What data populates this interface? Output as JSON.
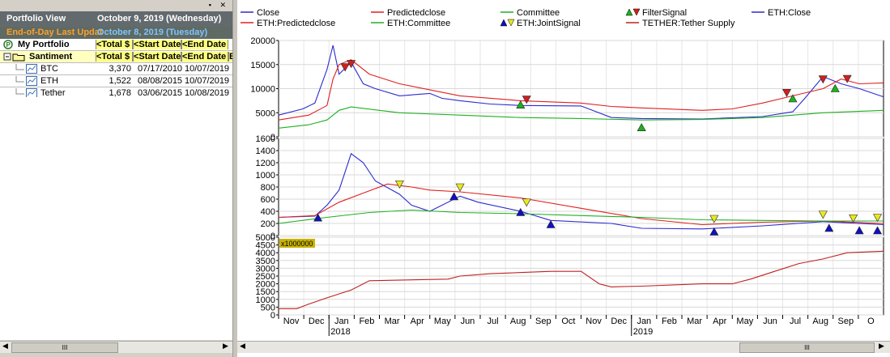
{
  "left_panel": {
    "view_title": "Portfolio View",
    "view_date": "October 9, 2019 (Wednesday)",
    "eod_label": "End-of-Day Last Updat",
    "eod_date": "October 8, 2019 (Tuesday)",
    "portfolio": {
      "name": "My Portfolio",
      "col1": "<Total $",
      "col2": "<Start Date",
      "col3": "<End Date"
    },
    "group": {
      "name": "Santiment",
      "col1": "<Total $",
      "col2": "<Start Date",
      "col3": "<End Date",
      "col4": "E"
    },
    "rows": [
      {
        "name": "BTC",
        "total": "3,370",
        "start": "07/17/2010",
        "end": "10/07/2019"
      },
      {
        "name": "ETH",
        "total": "1,522",
        "start": "08/08/2015",
        "end": "10/07/2019"
      },
      {
        "name": "Tether",
        "total": "1,678",
        "start": "03/06/2015",
        "end": "10/08/2019"
      }
    ],
    "scroll_grip": "III"
  },
  "chart_scroll_grip": "III",
  "legend": [
    {
      "label": "Close",
      "color": "#2b2bd0",
      "icon": "line"
    },
    {
      "label": "Predictedclose",
      "color": "#e02020",
      "icon": "line"
    },
    {
      "label": "Committee",
      "color": "#20b020",
      "icon": "line"
    },
    {
      "label": "FilterSignal",
      "color": "#20b020",
      "icon": "triangles-green-red"
    },
    {
      "label": "ETH:Close",
      "color": "#2b2bd0",
      "icon": "line"
    },
    {
      "label": "ETH:Predictedclose",
      "color": "#e02020",
      "icon": "line"
    },
    {
      "label": "ETH:Committee",
      "color": "#20b020",
      "icon": "line"
    },
    {
      "label": "ETH:JointSignal",
      "color": "#1010c0",
      "icon": "triangles-blue-yellow"
    },
    {
      "label": "TETHER:Tether Supply",
      "color": "#c02020",
      "icon": "line"
    }
  ],
  "chart_data": [
    {
      "type": "line",
      "panel": "top",
      "ylim": [
        0,
        20000
      ],
      "yticks": [
        0,
        5000,
        10000,
        15000,
        20000
      ],
      "series": [
        {
          "name": "Close",
          "color": "#2b2bd0",
          "values": [
            [
              0,
              4500
            ],
            [
              0.04,
              5800
            ],
            [
              0.06,
              7000
            ],
            [
              0.08,
              14000
            ],
            [
              0.09,
              19000
            ],
            [
              0.1,
              13000
            ],
            [
              0.12,
              15500
            ],
            [
              0.14,
              11000
            ],
            [
              0.16,
              10000
            ],
            [
              0.2,
              8500
            ],
            [
              0.25,
              9000
            ],
            [
              0.27,
              8000
            ],
            [
              0.3,
              7500
            ],
            [
              0.35,
              6800
            ],
            [
              0.4,
              6500
            ],
            [
              0.5,
              6400
            ],
            [
              0.55,
              4000
            ],
            [
              0.6,
              3800
            ],
            [
              0.7,
              3700
            ],
            [
              0.8,
              4200
            ],
            [
              0.85,
              5200
            ],
            [
              0.87,
              8000
            ],
            [
              0.9,
              12500
            ],
            [
              0.93,
              11000
            ],
            [
              0.96,
              10000
            ],
            [
              1,
              8300
            ]
          ]
        },
        {
          "name": "Predictedclose",
          "color": "#e02020",
          "values": [
            [
              0,
              3500
            ],
            [
              0.05,
              4500
            ],
            [
              0.08,
              6500
            ],
            [
              0.09,
              12000
            ],
            [
              0.1,
              15000
            ],
            [
              0.12,
              16000
            ],
            [
              0.15,
              13000
            ],
            [
              0.2,
              11000
            ],
            [
              0.3,
              8500
            ],
            [
              0.4,
              7500
            ],
            [
              0.5,
              7000
            ],
            [
              0.55,
              6300
            ],
            [
              0.6,
              6000
            ],
            [
              0.7,
              5500
            ],
            [
              0.75,
              5800
            ],
            [
              0.8,
              7000
            ],
            [
              0.85,
              8500
            ],
            [
              0.9,
              10000
            ],
            [
              0.93,
              12000
            ],
            [
              0.96,
              11000
            ],
            [
              1,
              11200
            ]
          ]
        },
        {
          "name": "Committee",
          "color": "#20b020",
          "values": [
            [
              0,
              1800
            ],
            [
              0.05,
              2500
            ],
            [
              0.08,
              3500
            ],
            [
              0.1,
              5500
            ],
            [
              0.12,
              6200
            ],
            [
              0.2,
              5000
            ],
            [
              0.3,
              4500
            ],
            [
              0.4,
              4000
            ],
            [
              0.5,
              3800
            ],
            [
              0.6,
              3500
            ],
            [
              0.7,
              3600
            ],
            [
              0.8,
              4000
            ],
            [
              0.9,
              5000
            ],
            [
              1,
              5500
            ]
          ]
        }
      ],
      "markers": [
        {
          "x": 0.11,
          "y": 14500,
          "color": "#d02020",
          "dir": "down"
        },
        {
          "x": 0.12,
          "y": 15200,
          "color": "#d02020",
          "dir": "down"
        },
        {
          "x": 0.41,
          "y": 7800,
          "color": "#d02020",
          "dir": "down"
        },
        {
          "x": 0.4,
          "y": 6600,
          "color": "#20b020",
          "dir": "up"
        },
        {
          "x": 0.6,
          "y": 1900,
          "color": "#20b020",
          "dir": "up"
        },
        {
          "x": 0.84,
          "y": 9200,
          "color": "#d02020",
          "dir": "down"
        },
        {
          "x": 0.85,
          "y": 7900,
          "color": "#20b020",
          "dir": "up"
        },
        {
          "x": 0.9,
          "y": 12000,
          "color": "#d02020",
          "dir": "down"
        },
        {
          "x": 0.92,
          "y": 10000,
          "color": "#20b020",
          "dir": "up"
        },
        {
          "x": 0.94,
          "y": 12100,
          "color": "#d02020",
          "dir": "down"
        }
      ]
    },
    {
      "type": "line",
      "panel": "middle",
      "ylim": [
        0,
        1600
      ],
      "yticks": [
        0,
        200,
        400,
        600,
        800,
        1000,
        1200,
        1400,
        1600
      ],
      "series": [
        {
          "name": "ETH:Close",
          "color": "#2b2bd0",
          "values": [
            [
              0,
              300
            ],
            [
              0.06,
              320
            ],
            [
              0.08,
              500
            ],
            [
              0.1,
              750
            ],
            [
              0.12,
              1350
            ],
            [
              0.14,
              1200
            ],
            [
              0.16,
              900
            ],
            [
              0.2,
              680
            ],
            [
              0.22,
              500
            ],
            [
              0.25,
              400
            ],
            [
              0.3,
              650
            ],
            [
              0.33,
              550
            ],
            [
              0.4,
              400
            ],
            [
              0.45,
              250
            ],
            [
              0.55,
              200
            ],
            [
              0.6,
              120
            ],
            [
              0.7,
              110
            ],
            [
              0.8,
              160
            ],
            [
              0.9,
              230
            ],
            [
              1,
              180
            ]
          ]
        },
        {
          "name": "ETH:Predictedclose",
          "color": "#e02020",
          "values": [
            [
              0,
              300
            ],
            [
              0.06,
              330
            ],
            [
              0.1,
              550
            ],
            [
              0.14,
              700
            ],
            [
              0.18,
              850
            ],
            [
              0.22,
              800
            ],
            [
              0.25,
              750
            ],
            [
              0.3,
              720
            ],
            [
              0.4,
              620
            ],
            [
              0.5,
              450
            ],
            [
              0.6,
              280
            ],
            [
              0.7,
              180
            ],
            [
              0.8,
              220
            ],
            [
              0.9,
              240
            ],
            [
              1,
              200
            ]
          ]
        },
        {
          "name": "ETH:Committee",
          "color": "#20b020",
          "values": [
            [
              0,
              200
            ],
            [
              0.08,
              300
            ],
            [
              0.15,
              380
            ],
            [
              0.22,
              420
            ],
            [
              0.3,
              380
            ],
            [
              0.4,
              360
            ],
            [
              0.5,
              330
            ],
            [
              0.6,
              300
            ],
            [
              0.7,
              260
            ],
            [
              0.8,
              250
            ],
            [
              0.9,
              240
            ],
            [
              1,
              240
            ]
          ]
        }
      ],
      "markers": [
        {
          "x": 0.065,
          "y": 290,
          "color": "#1010c0",
          "dir": "up"
        },
        {
          "x": 0.2,
          "y": 850,
          "color": "#e8e820",
          "dir": "down"
        },
        {
          "x": 0.29,
          "y": 640,
          "color": "#1010c0",
          "dir": "up"
        },
        {
          "x": 0.3,
          "y": 800,
          "color": "#e8e820",
          "dir": "down"
        },
        {
          "x": 0.4,
          "y": 380,
          "color": "#1010c0",
          "dir": "up"
        },
        {
          "x": 0.41,
          "y": 550,
          "color": "#e8e820",
          "dir": "down"
        },
        {
          "x": 0.45,
          "y": 180,
          "color": "#1010c0",
          "dir": "up"
        },
        {
          "x": 0.72,
          "y": 280,
          "color": "#e8e820",
          "dir": "down"
        },
        {
          "x": 0.72,
          "y": 60,
          "color": "#1010c0",
          "dir": "up"
        },
        {
          "x": 0.9,
          "y": 350,
          "color": "#e8e820",
          "dir": "down"
        },
        {
          "x": 0.91,
          "y": 120,
          "color": "#1010c0",
          "dir": "up"
        },
        {
          "x": 0.95,
          "y": 290,
          "color": "#e8e820",
          "dir": "down"
        },
        {
          "x": 0.96,
          "y": 80,
          "color": "#1010c0",
          "dir": "up"
        },
        {
          "x": 0.99,
          "y": 300,
          "color": "#e8e820",
          "dir": "down"
        },
        {
          "x": 0.99,
          "y": 80,
          "color": "#1010c0",
          "dir": "up"
        }
      ]
    },
    {
      "type": "line",
      "panel": "bottom",
      "ylim": [
        0,
        5000
      ],
      "yticks": [
        0,
        500,
        1000,
        1500,
        2000,
        2500,
        3000,
        3500,
        4000,
        4500,
        5000
      ],
      "scale_badge": "x1000000",
      "series": [
        {
          "name": "TETHER:Tether Supply",
          "color": "#c02020",
          "values": [
            [
              0,
              400
            ],
            [
              0.03,
              400
            ],
            [
              0.05,
              700
            ],
            [
              0.08,
              1100
            ],
            [
              0.12,
              1600
            ],
            [
              0.15,
              2200
            ],
            [
              0.28,
              2300
            ],
            [
              0.3,
              2500
            ],
            [
              0.35,
              2650
            ],
            [
              0.45,
              2800
            ],
            [
              0.5,
              2800
            ],
            [
              0.53,
              2000
            ],
            [
              0.55,
              1800
            ],
            [
              0.6,
              1850
            ],
            [
              0.7,
              2000
            ],
            [
              0.75,
              2000
            ],
            [
              0.78,
              2300
            ],
            [
              0.82,
              2800
            ],
            [
              0.86,
              3300
            ],
            [
              0.9,
              3600
            ],
            [
              0.94,
              4000
            ],
            [
              1,
              4100
            ]
          ]
        }
      ]
    }
  ],
  "xaxis": {
    "labels": [
      "Nov",
      "Dec",
      "Jan",
      "Feb",
      "Mar",
      "Apr",
      "May",
      "Jun",
      "Jul",
      "Aug",
      "Sep",
      "Oct",
      "Nov",
      "Dec",
      "Jan",
      "Feb",
      "Mar",
      "Apr",
      "May",
      "Jun",
      "Jul",
      "Aug",
      "Sep",
      "O"
    ],
    "years": [
      {
        "label": "2018",
        "at": 2
      },
      {
        "label": "2019",
        "at": 14
      }
    ]
  }
}
